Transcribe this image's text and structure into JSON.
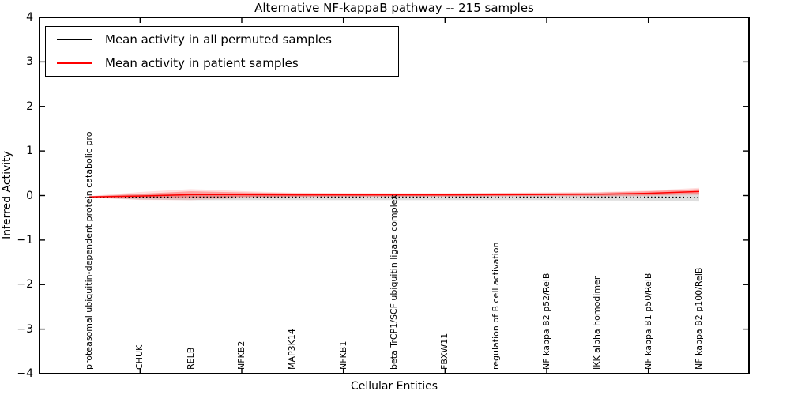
{
  "title": "Alternative NF-kappaB pathway -- 215 samples",
  "legend": {
    "items": [
      {
        "label": "Mean activity in all permuted samples",
        "color": "#000000"
      },
      {
        "label": "Mean activity in patient samples",
        "color": "#ff0000"
      }
    ]
  },
  "axes": {
    "xlabel": "Cellular Entities",
    "ylabel": "Inferred Activity",
    "ytick_labels": [
      "4",
      "3",
      "2",
      "1",
      "0",
      "−1",
      "−2",
      "−3",
      "−4"
    ],
    "ytick_values": [
      4,
      3,
      2,
      1,
      0,
      -1,
      -2,
      -3,
      -4
    ],
    "xtick_entity_indices": [
      1,
      3,
      5,
      7,
      9,
      11
    ]
  },
  "chart_data": {
    "type": "line",
    "title": "Alternative NF-kappaB pathway -- 215 samples",
    "xlabel": "Cellular Entities",
    "ylabel": "Inferred Activity",
    "ylim": [
      -4,
      4
    ],
    "grid": false,
    "legend_position": "upper left",
    "categories": [
      "proteasomal ubiquitin-dependent protein catabolic pro",
      "CHUK",
      "RELB",
      "NFKB2",
      "MAP3K14",
      "NFKB1",
      "beta TrCP1/SCF ubiquitin ligase complex",
      "FBXW11",
      "regulation of B cell activation",
      "NF kappa B2 p52/RelB",
      "IKK alpha homodimer",
      "NF kappa B1 p50/RelB",
      "NF kappa B2 p100/RelB"
    ],
    "series": [
      {
        "name": "Mean activity in all permuted samples",
        "color": "#000000",
        "line_style": "dotted",
        "values": [
          -0.03,
          -0.035,
          -0.035,
          -0.035,
          -0.035,
          -0.035,
          -0.035,
          -0.035,
          -0.035,
          -0.035,
          -0.035,
          -0.035,
          -0.04
        ],
        "band_halfwidth": [
          0.012,
          0.055,
          0.07,
          0.07,
          0.07,
          0.07,
          0.07,
          0.07,
          0.07,
          0.07,
          0.075,
          0.08,
          0.095
        ],
        "band_color": "rgba(0,0,0,0.13)"
      },
      {
        "name": "Mean activity in patient samples",
        "color": "#ff0000",
        "line_style": "solid",
        "values": [
          -0.03,
          -0.01,
          0.02,
          0.02,
          0.015,
          0.015,
          0.015,
          0.015,
          0.02,
          0.025,
          0.03,
          0.05,
          0.09
        ],
        "band_halfwidth": [
          0.012,
          0.05,
          0.075,
          0.05,
          0.035,
          0.03,
          0.03,
          0.03,
          0.03,
          0.03,
          0.035,
          0.045,
          0.055
        ],
        "band_outer_halfwidth": [
          0.02,
          0.09,
          0.125,
          0.08,
          0.05,
          0.045,
          0.04,
          0.04,
          0.04,
          0.045,
          0.05,
          0.06,
          0.082
        ],
        "band_color": "rgba(255,0,0,0.28)",
        "band_outer_color": "rgba(255,0,0,0.12)"
      }
    ]
  }
}
